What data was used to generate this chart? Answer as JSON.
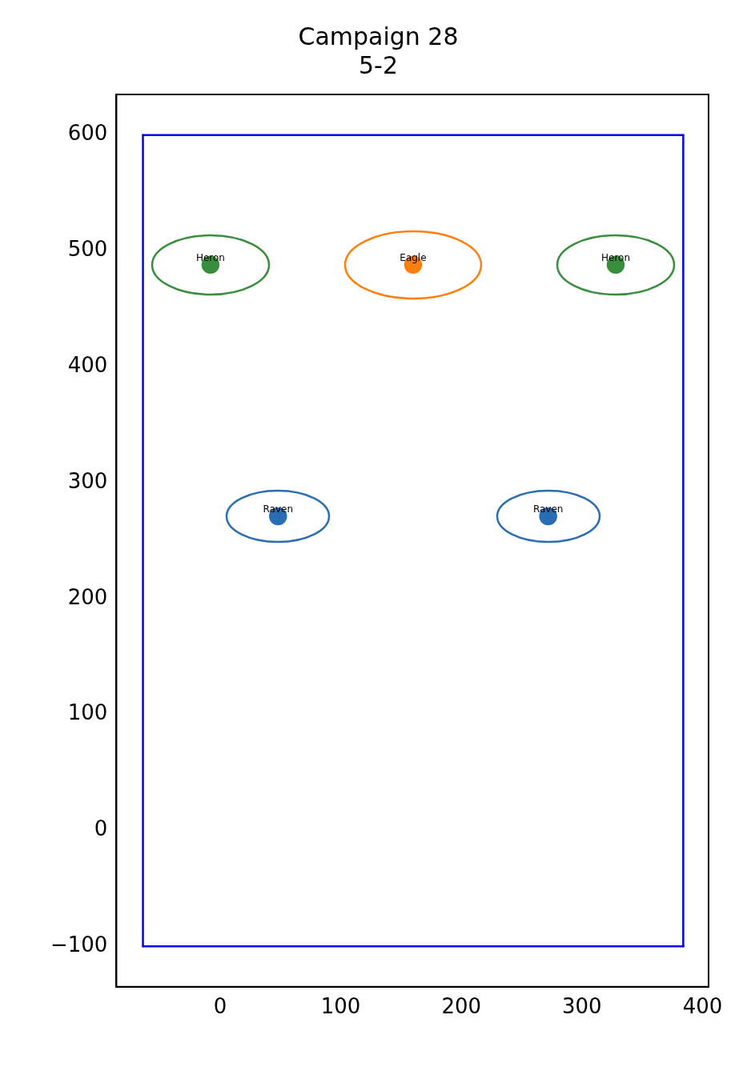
{
  "chart_data": {
    "type": "scatter",
    "title": "Campaign 28",
    "subtitle": "5-2",
    "marker": "circle",
    "legend": false,
    "grid": false,
    "xlim": [
      -86,
      405
    ],
    "xticks": [
      0,
      100,
      200,
      300,
      400
    ],
    "ylim": [
      -135,
      635
    ],
    "yticks": [
      -100,
      0,
      100,
      200,
      300,
      400,
      500,
      600
    ],
    "series": [
      {
        "type": "line",
        "marker": "none",
        "color": "#0000ff",
        "x": [
          -64,
          384
        ],
        "values": [
          -100,
          -100
        ]
      },
      {
        "type": "line",
        "marker": "none",
        "color": "#0000ff",
        "x": [
          -64,
          384
        ],
        "values": [
          600,
          600
        ]
      },
      {
        "type": "line",
        "marker": "none",
        "color": "#0000ff",
        "x": [
          -64,
          -64
        ],
        "values": [
          -100,
          600
        ]
      },
      {
        "type": "line",
        "marker": "none",
        "color": "#0000ff",
        "x": [
          384,
          384
        ],
        "values": [
          -100,
          600
        ]
      },
      {
        "name": "Heron",
        "color": "#388e3c",
        "x": [
          -8,
          328
        ],
        "values": [
          488,
          488
        ]
      },
      {
        "name": "Eagle",
        "color": "#ff7f0e",
        "x": [
          160
        ],
        "values": [
          488
        ]
      },
      {
        "name": "Raven",
        "color": "#2a6db5",
        "x": [
          48,
          272
        ],
        "values": [
          271,
          271
        ]
      }
    ]
  }
}
